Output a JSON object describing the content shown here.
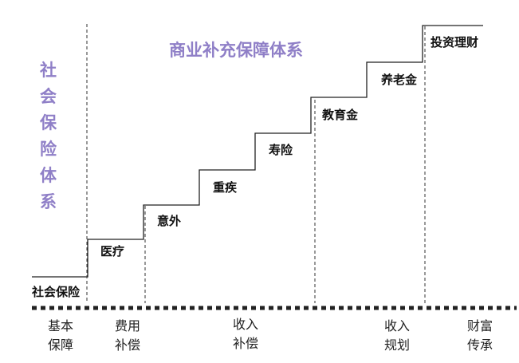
{
  "titles": {
    "commercial": "商业补充保障体系",
    "social": [
      "社",
      "会",
      "保",
      "险",
      "体",
      "系"
    ]
  },
  "steps": [
    "社会保险",
    "医疗",
    "意外",
    "重疾",
    "寿险",
    "教育金",
    "养老金",
    "投资理财"
  ],
  "bottom_labels": [
    [
      "基本",
      "保障"
    ],
    [
      "费用",
      "补偿"
    ],
    [
      "收入",
      "补偿"
    ],
    [
      "收入",
      "规划"
    ],
    [
      "财富",
      "传承"
    ]
  ],
  "colors": {
    "accent_purple": "#8f7fc7",
    "line": "#222222"
  }
}
